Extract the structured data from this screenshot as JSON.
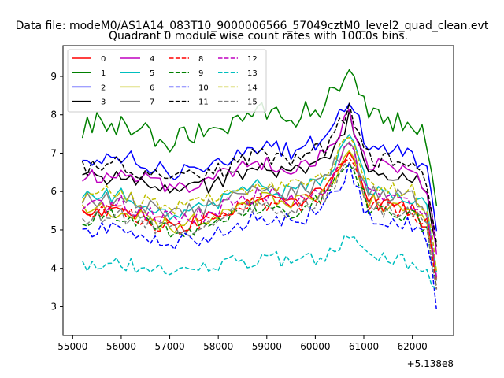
{
  "chart_data": {
    "type": "line",
    "suptitle": "Data file: modeM0/AS1A14_083T10_9000006566_57049cztM0_level2_quad_clean.evt",
    "title": "Quadrant 0 module wise count rates with 100.0s bins.",
    "xlabel": "",
    "ylabel": "",
    "x_offset_label": "+5.138e8",
    "xlim": [
      54800,
      62850
    ],
    "ylim": [
      2.25,
      9.8
    ],
    "xticks": [
      55000,
      56000,
      57000,
      58000,
      59000,
      60000,
      61000,
      62000
    ],
    "yticks": [
      3,
      4,
      5,
      6,
      7,
      8,
      9
    ],
    "x_start": 55200,
    "x_step": 100,
    "n_points": 74,
    "grid": false,
    "legend_position": "top-left",
    "legend_columns": 4,
    "series": [
      {
        "name": "0",
        "color": "#ff0000",
        "dash": "solid",
        "base": 5.45
      },
      {
        "name": "1",
        "color": "#008000",
        "dash": "solid",
        "base": 7.7
      },
      {
        "name": "2",
        "color": "#0000ff",
        "dash": "solid",
        "base": 6.85
      },
      {
        "name": "3",
        "color": "#000000",
        "dash": "solid",
        "base": 6.3
      },
      {
        "name": "4",
        "color": "#bf00bf",
        "dash": "solid",
        "base": 6.4
      },
      {
        "name": "5",
        "color": "#00bfbf",
        "dash": "solid",
        "base": 5.8
      },
      {
        "name": "6",
        "color": "#bfbf00",
        "dash": "solid",
        "base": 5.45
      },
      {
        "name": "7",
        "color": "#808080",
        "dash": "solid",
        "base": 5.75
      },
      {
        "name": "8",
        "color": "#ff0000",
        "dash": "dashed",
        "base": 5.4
      },
      {
        "name": "9",
        "color": "#008000",
        "dash": "dashed",
        "base": 5.3
      },
      {
        "name": "10",
        "color": "#0000ff",
        "dash": "dashed",
        "base": 5.0
      },
      {
        "name": "11",
        "color": "#000000",
        "dash": "dashed",
        "base": 6.6
      },
      {
        "name": "12",
        "color": "#bf00bf",
        "dash": "dashed",
        "base": 5.6
      },
      {
        "name": "13",
        "color": "#00bfbf",
        "dash": "dashed",
        "base": 4.1
      },
      {
        "name": "14",
        "color": "#bfbf00",
        "dash": "dashed",
        "base": 5.9
      },
      {
        "name": "15",
        "color": "#808080",
        "dash": "dashed",
        "base": 5.3
      }
    ],
    "shape_profile": {
      "description": "Common time profile shared by all modules: noisy plateau, rise to a peak near 60700, dip near 61200, drop to low values at 62500",
      "knots_x": [
        55200,
        56000,
        57000,
        57800,
        58800,
        59500,
        60200,
        60700,
        61100,
        61500,
        62000,
        62300,
        62500
      ],
      "knots_delta": [
        0.0,
        0.1,
        -0.35,
        -0.15,
        0.35,
        0.2,
        0.55,
        1.6,
        0.3,
        0.2,
        0.1,
        -0.3,
        -1.9
      ]
    }
  }
}
